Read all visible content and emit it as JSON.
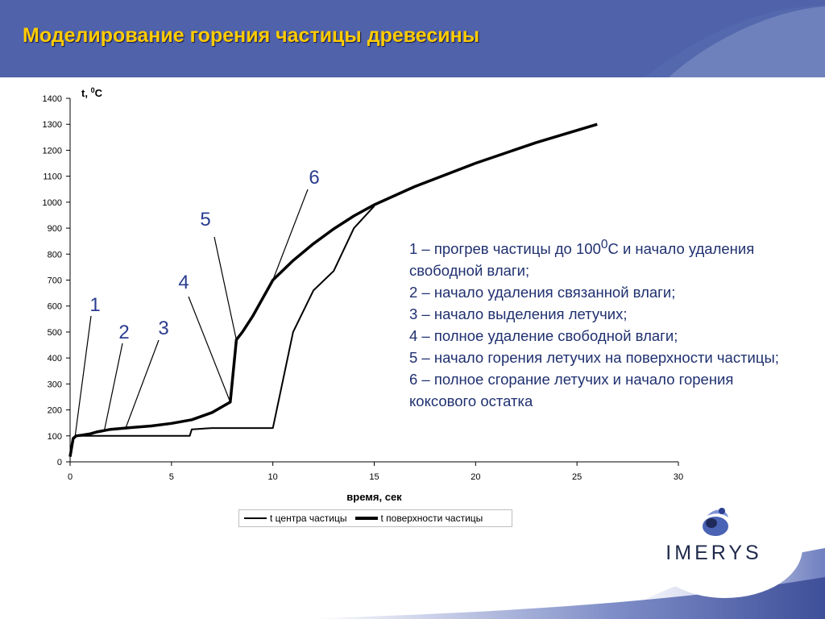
{
  "header": {
    "title": "Моделирование горения частицы древесины"
  },
  "logo": {
    "text": "IMERYS"
  },
  "chart_data": {
    "type": "line",
    "xlabel": "время, сек",
    "ylabel": "t, 0C",
    "ylabel_parts": {
      "t": "t, ",
      "sup": "0",
      "unit": "C"
    },
    "xlim": [
      0,
      30
    ],
    "ylim": [
      0,
      1400
    ],
    "xticks": [
      0,
      5,
      10,
      15,
      20,
      25,
      30
    ],
    "yticks": [
      0,
      100,
      200,
      300,
      400,
      500,
      600,
      700,
      800,
      900,
      1000,
      1100,
      1200,
      1300,
      1400
    ],
    "grid": false,
    "legend": "bottom",
    "series": [
      {
        "name": "t центра частицы",
        "line": "thin",
        "points": [
          [
            0,
            20
          ],
          [
            0.15,
            85
          ],
          [
            0.3,
            100
          ],
          [
            1,
            100
          ],
          [
            3,
            100
          ],
          [
            5,
            100
          ],
          [
            5.9,
            100
          ],
          [
            6,
            125
          ],
          [
            7,
            130
          ],
          [
            8,
            130
          ],
          [
            9,
            130
          ],
          [
            10,
            130
          ],
          [
            11,
            500
          ],
          [
            12,
            660
          ],
          [
            13,
            735
          ],
          [
            14,
            900
          ],
          [
            15,
            985
          ]
        ]
      },
      {
        "name": "t поверхности частицы",
        "line": "thick",
        "points": [
          [
            0,
            20
          ],
          [
            0.15,
            90
          ],
          [
            0.3,
            100
          ],
          [
            0.6,
            103
          ],
          [
            1,
            108
          ],
          [
            1.3,
            115
          ],
          [
            2,
            125
          ],
          [
            3,
            132
          ],
          [
            4,
            138
          ],
          [
            5,
            148
          ],
          [
            6,
            162
          ],
          [
            7,
            190
          ],
          [
            7.9,
            230
          ],
          [
            8.2,
            470
          ],
          [
            8.5,
            500
          ],
          [
            9,
            560
          ],
          [
            10,
            700
          ],
          [
            11,
            775
          ],
          [
            12,
            840
          ],
          [
            13,
            897
          ],
          [
            14,
            947
          ],
          [
            15,
            990
          ],
          [
            17,
            1060
          ],
          [
            20,
            1150
          ],
          [
            23,
            1230
          ],
          [
            26,
            1300
          ]
        ]
      }
    ],
    "annotations": [
      {
        "label": "1",
        "x": 0.25,
        "y": 100
      },
      {
        "label": "2",
        "x": 1.7,
        "y": 125
      },
      {
        "label": "3",
        "x": 2.75,
        "y": 132
      },
      {
        "label": "4",
        "x": 7.9,
        "y": 230
      },
      {
        "label": "5",
        "x": 8.2,
        "y": 470
      },
      {
        "label": "6",
        "x": 10,
        "y": 700
      }
    ]
  },
  "notes": [
    {
      "pre": "1 – прогрев частицы до 100",
      "sup": "0",
      "post": "С и начало удаления свободной влаги;"
    },
    {
      "pre": "2 – начало удаления связанной влаги;",
      "sup": "",
      "post": ""
    },
    {
      "pre": "3 – начало выделения летучих;",
      "sup": "",
      "post": ""
    },
    {
      "pre": "4 – полное удаление свободной влаги;",
      "sup": "",
      "post": ""
    },
    {
      "pre": "5 – начало горения летучих на поверхности частицы;",
      "sup": "",
      "post": ""
    },
    {
      "pre": "6 – полное сгорание летучих и начало горения коксового остатка",
      "sup": "",
      "post": ""
    }
  ],
  "colors": {
    "header": "#5468ae",
    "title": "#ffcc00",
    "notes": "#1f3070",
    "annotation": "#2a3d8f"
  }
}
